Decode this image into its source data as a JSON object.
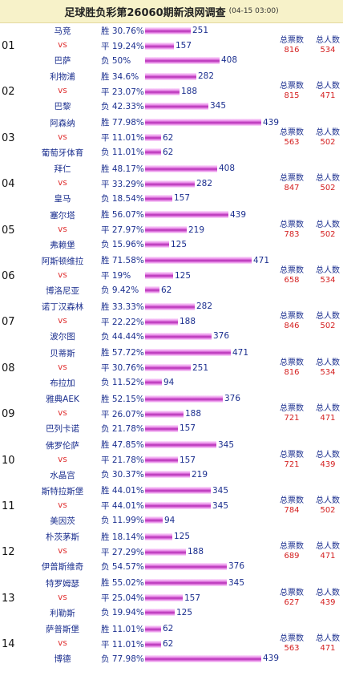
{
  "header": {
    "title": "足球胜负彩第26060期新浪网调查",
    "date": "(04-15 03:00)"
  },
  "labels": {
    "vs": "vs",
    "win": "胜",
    "draw": "平",
    "loss": "负",
    "total_votes": "总票数",
    "total_people": "总人数"
  },
  "matches": [
    {
      "no": "01",
      "home": "马竞",
      "away": "巴萨",
      "win": {
        "pct": "30.76%",
        "count": 251
      },
      "draw": {
        "pct": "19.24%",
        "count": 157
      },
      "loss": {
        "pct": "50%",
        "count": 408
      },
      "total_votes": 816,
      "total_people": 534
    },
    {
      "no": "02",
      "home": "利物浦",
      "away": "巴黎",
      "win": {
        "pct": "34.6%",
        "count": 282
      },
      "draw": {
        "pct": "23.07%",
        "count": 188
      },
      "loss": {
        "pct": "42.33%",
        "count": 345
      },
      "total_votes": 815,
      "total_people": 471
    },
    {
      "no": "03",
      "home": "阿森纳",
      "away": "葡萄牙体育",
      "win": {
        "pct": "77.98%",
        "count": 439
      },
      "draw": {
        "pct": "11.01%",
        "count": 62
      },
      "loss": {
        "pct": "11.01%",
        "count": 62
      },
      "total_votes": 563,
      "total_people": 502
    },
    {
      "no": "04",
      "home": "拜仁",
      "away": "皇马",
      "win": {
        "pct": "48.17%",
        "count": 408
      },
      "draw": {
        "pct": "33.29%",
        "count": 282
      },
      "loss": {
        "pct": "18.54%",
        "count": 157
      },
      "total_votes": 847,
      "total_people": 502
    },
    {
      "no": "05",
      "home": "塞尔塔",
      "away": "弗赖堡",
      "win": {
        "pct": "56.07%",
        "count": 439
      },
      "draw": {
        "pct": "27.97%",
        "count": 219
      },
      "loss": {
        "pct": "15.96%",
        "count": 125
      },
      "total_votes": 783,
      "total_people": 502
    },
    {
      "no": "06",
      "home": "阿斯顿维拉",
      "away": "博洛尼亚",
      "win": {
        "pct": "71.58%",
        "count": 471
      },
      "draw": {
        "pct": "19%",
        "count": 125
      },
      "loss": {
        "pct": "9.42%",
        "count": 62
      },
      "total_votes": 658,
      "total_people": 534
    },
    {
      "no": "07",
      "home": "诺丁汉森林",
      "away": "波尔图",
      "win": {
        "pct": "33.33%",
        "count": 282
      },
      "draw": {
        "pct": "22.22%",
        "count": 188
      },
      "loss": {
        "pct": "44.44%",
        "count": 376
      },
      "total_votes": 846,
      "total_people": 502
    },
    {
      "no": "08",
      "home": "贝蒂斯",
      "away": "布拉加",
      "win": {
        "pct": "57.72%",
        "count": 471
      },
      "draw": {
        "pct": "30.76%",
        "count": 251
      },
      "loss": {
        "pct": "11.52%",
        "count": 94
      },
      "total_votes": 816,
      "total_people": 534
    },
    {
      "no": "09",
      "home": "雅典AEK",
      "away": "巴列卡诺",
      "win": {
        "pct": "52.15%",
        "count": 376
      },
      "draw": {
        "pct": "26.07%",
        "count": 188
      },
      "loss": {
        "pct": "21.78%",
        "count": 157
      },
      "total_votes": 721,
      "total_people": 471
    },
    {
      "no": "10",
      "home": "佛罗伦萨",
      "away": "水晶宫",
      "win": {
        "pct": "47.85%",
        "count": 345
      },
      "draw": {
        "pct": "21.78%",
        "count": 157
      },
      "loss": {
        "pct": "30.37%",
        "count": 219
      },
      "total_votes": 721,
      "total_people": 439
    },
    {
      "no": "11",
      "home": "斯特拉斯堡",
      "away": "美因茨",
      "win": {
        "pct": "44.01%",
        "count": 345
      },
      "draw": {
        "pct": "44.01%",
        "count": 345
      },
      "loss": {
        "pct": "11.99%",
        "count": 94
      },
      "total_votes": 784,
      "total_people": 502
    },
    {
      "no": "12",
      "home": "朴茨茅斯",
      "away": "伊普斯维奇",
      "win": {
        "pct": "18.14%",
        "count": 125
      },
      "draw": {
        "pct": "27.29%",
        "count": 188
      },
      "loss": {
        "pct": "54.57%",
        "count": 376
      },
      "total_votes": 689,
      "total_people": 471
    },
    {
      "no": "13",
      "home": "特罗姆瑟",
      "away": "利勒斯",
      "win": {
        "pct": "55.02%",
        "count": 345
      },
      "draw": {
        "pct": "25.04%",
        "count": 157
      },
      "loss": {
        "pct": "19.94%",
        "count": 125
      },
      "total_votes": 627,
      "total_people": 439
    },
    {
      "no": "14",
      "home": "萨普斯堡",
      "away": "博德",
      "win": {
        "pct": "11.01%",
        "count": 62
      },
      "draw": {
        "pct": "11.01%",
        "count": 62
      },
      "loss": {
        "pct": "77.98%",
        "count": 439
      },
      "total_votes": 563,
      "total_people": 471
    }
  ]
}
